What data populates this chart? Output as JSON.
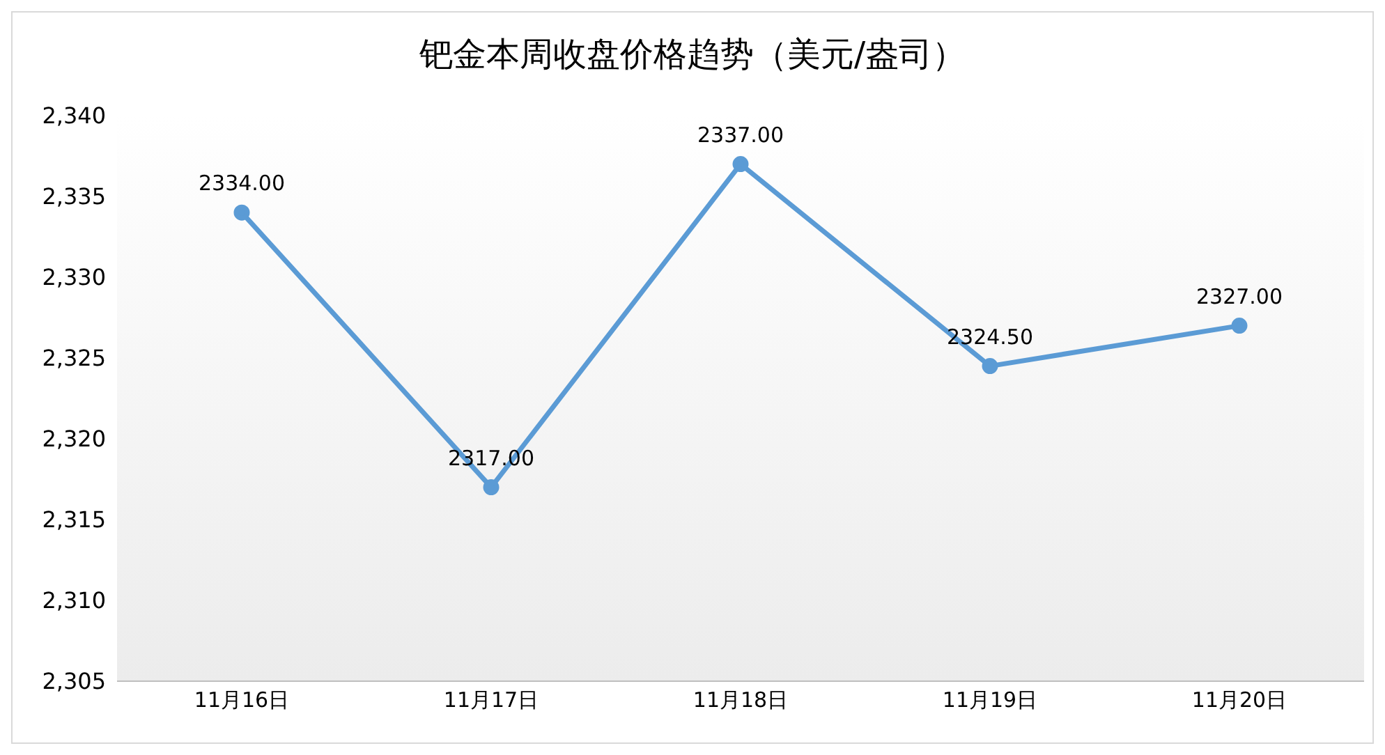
{
  "chart_data": {
    "type": "line",
    "title": "钯金本周收盘价格趋势（美元/盎司）",
    "categories": [
      "11月16日",
      "11月17日",
      "11月18日",
      "11月19日",
      "11月20日"
    ],
    "series": [
      {
        "color": "#5b9bd5",
        "values": [
          2334,
          2317,
          2337,
          2324.5,
          2327
        ],
        "value_labels": [
          "2334.00",
          "2317.00",
          "2337.00",
          "2324.50",
          "2327.00"
        ]
      }
    ],
    "ylim": [
      2305,
      2340
    ],
    "yticks": [
      {
        "value": 2305,
        "label": "2,305"
      },
      {
        "value": 2310,
        "label": "2,310"
      },
      {
        "value": 2315,
        "label": "2,315"
      },
      {
        "value": 2320,
        "label": "2,320"
      },
      {
        "value": 2325,
        "label": "2,325"
      },
      {
        "value": 2330,
        "label": "2,330"
      },
      {
        "value": 2335,
        "label": "2,335"
      },
      {
        "value": 2340,
        "label": "2,340"
      }
    ],
    "grid": false,
    "legend": false,
    "marker": "circle",
    "line_style": "solid"
  }
}
